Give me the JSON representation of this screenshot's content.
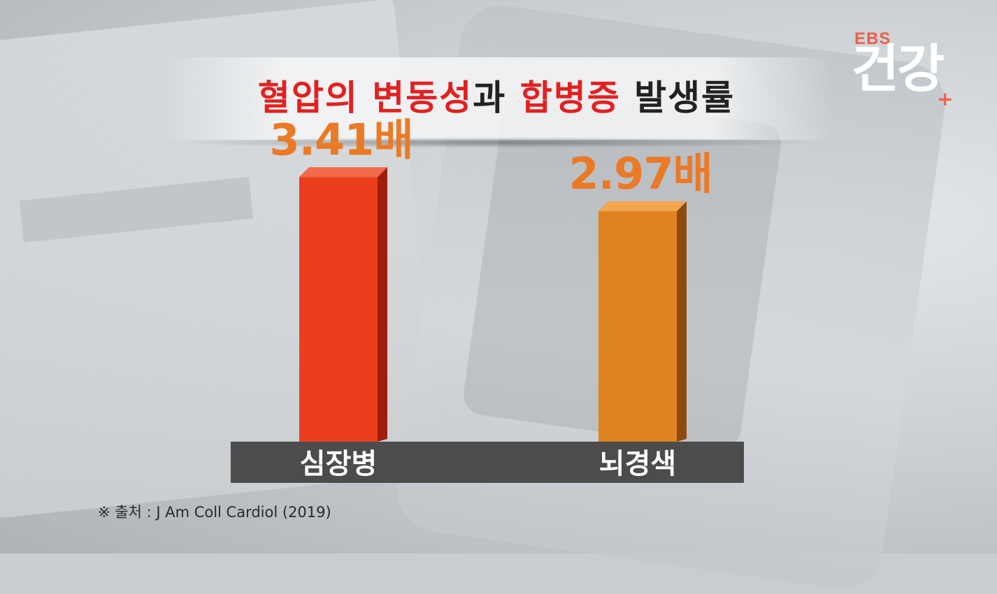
{
  "title": {
    "parts": [
      {
        "text": "혈압의 ",
        "highlight": true
      },
      {
        "text": "변동성",
        "highlight": true
      },
      {
        "text": "과 ",
        "highlight": false
      },
      {
        "text": "합병증",
        "highlight": true
      },
      {
        "text": " 발생률",
        "highlight": false
      }
    ]
  },
  "logo": {
    "top": "EBS",
    "main": "건강",
    "plus": "+"
  },
  "source": "※ 출처 : J Am Coll Cardiol (2019)",
  "colors": {
    "title_highlight": "#e32020",
    "bar_heart": "#ea3d1c",
    "bar_stroke": "#e0821f",
    "category_band": "#4c4c4c",
    "value_label": "#ea7a26"
  },
  "chart_data": {
    "type": "bar",
    "categories": [
      "심장병",
      "뇌경색"
    ],
    "values": [
      3.41,
      2.97
    ],
    "value_labels": [
      "3.41배",
      "2.97배"
    ],
    "ylim": [
      0,
      3.8
    ],
    "grid": false
  }
}
